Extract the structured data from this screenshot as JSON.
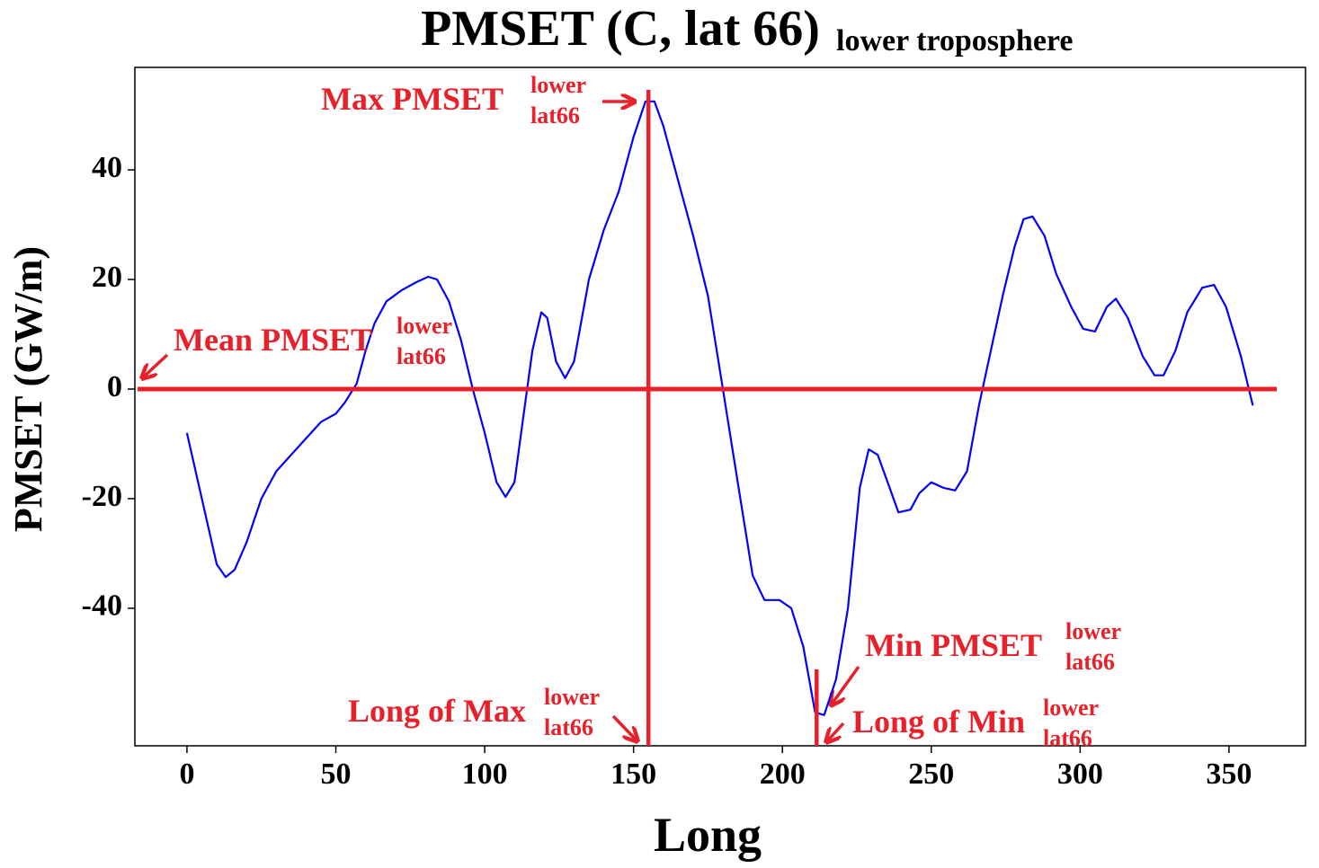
{
  "chart_data": {
    "type": "line",
    "title": "PMSET (C, lat 66)",
    "title_sub": "lower troposphere",
    "x_label": "Long",
    "y_label": "PMSET (GW/m)",
    "xlim": [
      -17.5,
      375.7
    ],
    "ylim": [
      -65.1,
      58.7
    ],
    "xticks": [
      0,
      50,
      100,
      150,
      200,
      250,
      300,
      350
    ],
    "yticks": [
      -40,
      -20,
      0,
      20,
      40
    ],
    "series": [
      {
        "color": "#0000ff",
        "x": [
          0,
          5,
          10,
          13,
          16,
          20,
          25,
          30,
          35,
          40,
          45,
          50,
          53,
          57,
          60,
          63,
          67,
          72,
          77,
          81,
          84,
          88,
          92,
          96,
          100,
          104,
          107,
          110,
          113,
          116,
          119,
          121,
          124,
          127,
          130,
          135,
          140,
          145,
          150,
          154,
          157,
          160,
          165,
          170,
          175,
          180,
          185,
          190,
          194,
          199,
          203,
          207,
          211,
          214,
          218,
          222,
          226,
          229,
          232,
          236,
          239,
          243,
          246,
          250,
          254,
          258,
          262,
          266,
          270,
          274,
          278,
          281,
          284,
          288,
          292,
          297,
          301,
          305,
          309,
          312,
          316,
          321,
          325,
          328,
          332,
          336,
          341,
          345,
          349,
          354,
          358
        ],
        "values": [
          -8,
          -20,
          -32,
          -34.3,
          -33,
          -28,
          -20,
          -15,
          -12,
          -9,
          -6,
          -4.5,
          -2.5,
          1,
          7,
          12,
          16,
          18,
          19.5,
          20.5,
          20,
          16,
          9,
          0,
          -8,
          -17,
          -19.7,
          -17,
          -5,
          7,
          14,
          13,
          5,
          2,
          5,
          20,
          29,
          36,
          46,
          52.5,
          52.5,
          48,
          38,
          28,
          17,
          0,
          -17,
          -34,
          -38.5,
          -38.5,
          -40,
          -47,
          -59,
          -59.5,
          -53,
          -40,
          -18,
          -11,
          -12,
          -18,
          -22.5,
          -22,
          -19,
          -17,
          -18,
          -18.5,
          -15,
          -3,
          7,
          17,
          26,
          31,
          31.5,
          28,
          21,
          15,
          11,
          10.5,
          15,
          16.5,
          13,
          6,
          2.5,
          2.5,
          7,
          14,
          18.5,
          19,
          15,
          6,
          -3
        ]
      }
    ],
    "ref_color": "#e8202a",
    "hlines": [
      0
    ],
    "vlines": [
      155,
      211.5
    ],
    "annotations": [
      {
        "text": "Max PMSET",
        "sup": "lower",
        "sub": "lat66"
      },
      {
        "text": "Mean PMSET",
        "sup": "lower",
        "sub": "lat66"
      },
      {
        "text": "Min PMSET",
        "sup": "lower",
        "sub": "lat66"
      },
      {
        "text": "Long of Max",
        "sup": "lower",
        "sub": "lat66"
      },
      {
        "text": "Long of Min",
        "sup": "lower",
        "sub": "lat66"
      }
    ]
  }
}
